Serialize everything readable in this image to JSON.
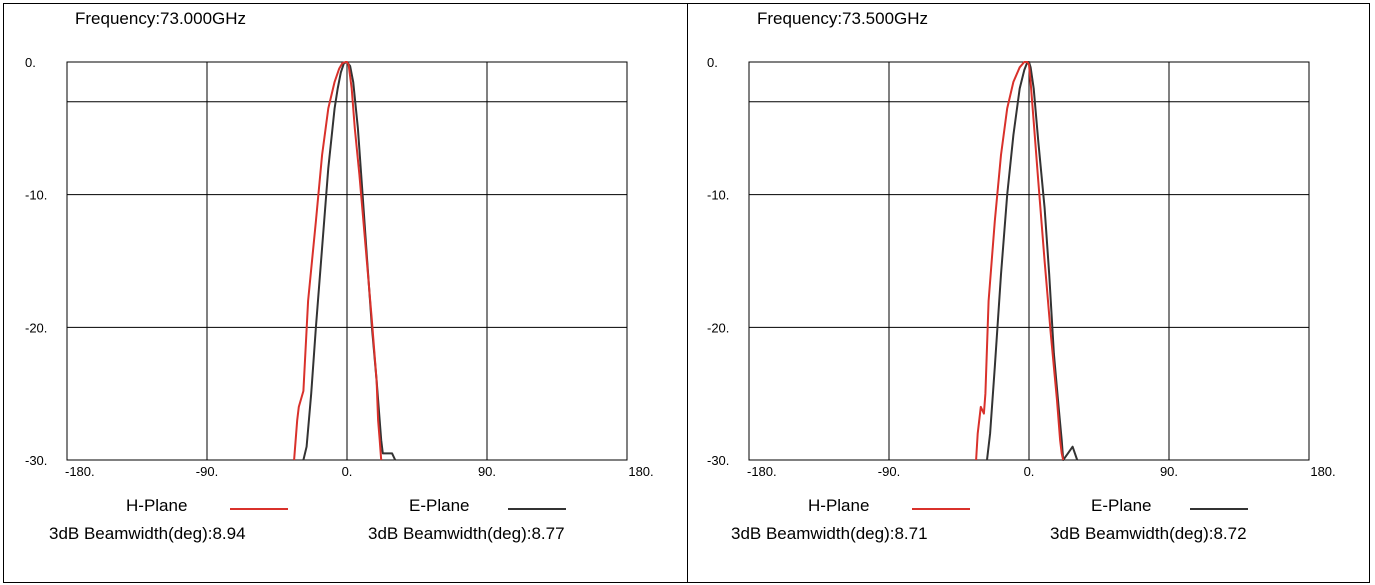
{
  "colors": {
    "h_plane": "#d9312b",
    "e_plane": "#333333",
    "grid": "#000000"
  },
  "chart_data": [
    {
      "type": "line",
      "title": "Frequency:73.000GHz",
      "xlim": [
        -180,
        180
      ],
      "ylim": [
        -30,
        0
      ],
      "x_ticks": [
        -180,
        -90,
        0,
        90,
        180
      ],
      "x_tick_labels": [
        "-180.",
        "-90.",
        "0.",
        "90.",
        "180."
      ],
      "y_ticks": [
        0,
        -10,
        -20,
        -30
      ],
      "y_tick_labels": [
        "0.",
        "-10.",
        "-20.",
        "-30."
      ],
      "grid": true,
      "series": [
        {
          "name": "H-Plane",
          "color": "#d9312b",
          "beamwidth_label": "3dB Beamwidth(deg):8.94",
          "x": [
            -34,
            -32,
            -31,
            -28,
            -25,
            -20,
            -16,
            -12,
            -8,
            -5,
            -3,
            -1,
            0,
            1,
            3,
            5,
            8,
            12,
            16,
            19,
            20,
            21,
            22
          ],
          "y": [
            -30,
            -27,
            -26,
            -24.8,
            -18,
            -12,
            -7,
            -3.5,
            -1.5,
            -0.5,
            -0.1,
            0,
            0,
            -0.2,
            -2,
            -5,
            -8.5,
            -14,
            -19.5,
            -24,
            -27,
            -28.5,
            -30
          ]
        },
        {
          "name": "E-Plane",
          "color": "#333333",
          "beamwidth_label": "3dB Beamwidth(deg):8.77",
          "x": [
            -28,
            -26,
            -23,
            -20,
            -16,
            -12,
            -8,
            -6,
            -4,
            -2,
            0,
            2,
            4,
            7,
            10,
            13,
            16,
            19,
            22,
            23,
            25,
            27,
            29,
            31
          ],
          "y": [
            -30,
            -29,
            -25,
            -20,
            -14,
            -8,
            -3.5,
            -2,
            -0.8,
            -0.1,
            0,
            -0.3,
            -1.5,
            -5,
            -10,
            -15,
            -20,
            -24,
            -28.5,
            -29.5,
            -29.5,
            -29.5,
            -29.5,
            -30
          ]
        }
      ]
    },
    {
      "type": "line",
      "title": "Frequency:73.500GHz",
      "xlim": [
        -180,
        180
      ],
      "ylim": [
        -30,
        0
      ],
      "x_ticks": [
        -180,
        -90,
        0,
        90,
        180
      ],
      "x_tick_labels": [
        "-180.",
        "-90.",
        "0.",
        "90.",
        "180."
      ],
      "y_ticks": [
        0,
        -10,
        -20,
        -30
      ],
      "y_tick_labels": [
        "0.",
        "-10.",
        "-20.",
        "-30."
      ],
      "grid": true,
      "series": [
        {
          "name": "H-Plane",
          "color": "#d9312b",
          "beamwidth_label": "3dB Beamwidth(deg):8.71",
          "x": [
            -34,
            -33,
            -31,
            -29,
            -28,
            -26,
            -22,
            -18,
            -14,
            -10,
            -6,
            -3,
            -1,
            0,
            1,
            3,
            6,
            10,
            14,
            18,
            20,
            21,
            22
          ],
          "y": [
            -30,
            -28,
            -26,
            -26.5,
            -25,
            -18,
            -12,
            -7,
            -3.5,
            -1.5,
            -0.4,
            0,
            0,
            -0.2,
            -1.5,
            -4.5,
            -9,
            -15,
            -20.5,
            -25.5,
            -28.5,
            -29.5,
            -30
          ]
        },
        {
          "name": "E-Plane",
          "color": "#333333",
          "beamwidth_label": "3dB Beamwidth(deg):8.72",
          "x": [
            -27,
            -25,
            -22,
            -18,
            -14,
            -10,
            -6,
            -3,
            -1,
            0,
            1,
            3,
            6,
            10,
            13,
            16,
            19,
            21,
            22,
            25,
            28,
            31
          ],
          "y": [
            -30,
            -28,
            -23,
            -16,
            -10,
            -5.5,
            -2,
            -0.6,
            0,
            0,
            -0.4,
            -2,
            -6,
            -11,
            -16,
            -22,
            -26,
            -28.5,
            -30,
            -29.5,
            -29,
            -30
          ]
        }
      ]
    }
  ],
  "legend": {
    "h_label": "H-Plane",
    "e_label": "E-Plane"
  }
}
